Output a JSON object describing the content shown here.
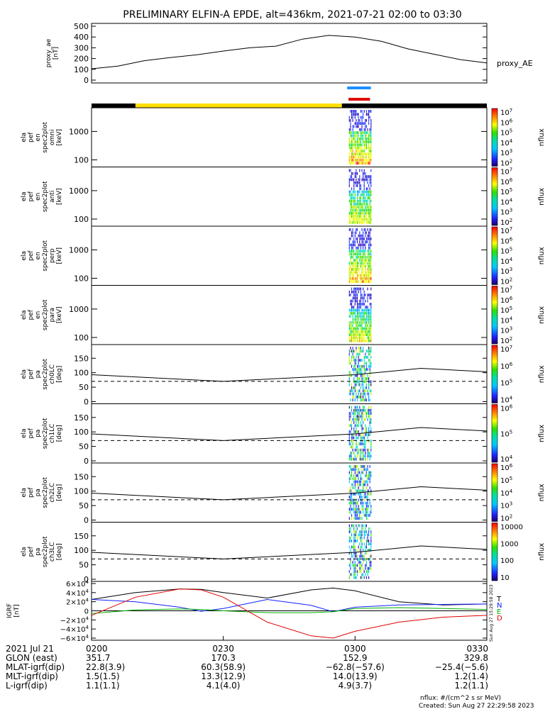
{
  "title": "PRELIMINARY ELFIN-A EPDE, alt=436km, 2021-07-21 02:00 to 03:30",
  "colors": {
    "sector_bar_black": "#000000",
    "sector_bar_yellow": "#ffe000",
    "marker_blue": "#1e90ff",
    "marker_red": "#e00000",
    "grf_n": "#1020ff",
    "grf_e": "#00b000",
    "grf_d": "#e00000",
    "grf_t": "#000000"
  },
  "chart_data": [
    {
      "id": "proxy_ae",
      "type": "line",
      "ylabel": "proxy_ae\n[nT]",
      "legend": "proxy_AE",
      "ylim": [
        0,
        500
      ],
      "yticks": [
        "500",
        "400",
        "300",
        "200",
        "100",
        "0"
      ],
      "x_minutes": [
        0,
        6,
        12,
        18,
        24,
        30,
        36,
        42,
        48,
        54,
        60,
        66,
        72,
        78,
        84,
        90
      ],
      "values": [
        105,
        130,
        180,
        210,
        235,
        270,
        300,
        315,
        380,
        415,
        400,
        360,
        290,
        240,
        190,
        160
      ]
    },
    {
      "id": "sector_bar",
      "type": "bar",
      "segments": [
        {
          "from_min": 0,
          "to_min": 10,
          "color": "black"
        },
        {
          "from_min": 10,
          "to_min": 57,
          "color": "yellow"
        },
        {
          "from_min": 57,
          "to_min": 90,
          "color": "black"
        }
      ],
      "markers": [
        {
          "color": "blue",
          "from_min": 58.2,
          "to_min": 63.6
        },
        {
          "color": "red",
          "from_min": 58.5,
          "to_min": 63.4
        }
      ]
    },
    {
      "id": "en_omni",
      "type": "heatmap",
      "ylabel": "ela\npef\nen\nspec2plot\nomni\n[keV]",
      "yticks": [
        "1000",
        "100"
      ],
      "colorbar": {
        "label": "nflux",
        "ticks": [
          "10^7",
          "10^6",
          "10^5",
          "10^4",
          "10^3",
          "10^2"
        ]
      },
      "active_minutes": [
        58.6,
        63.8
      ]
    },
    {
      "id": "en_anti",
      "type": "heatmap",
      "ylabel": "ela\npef\nen\nspec2plot\nanti\n[keV]",
      "yticks": [
        "1000",
        "100"
      ],
      "colorbar": {
        "label": "nflux",
        "ticks": [
          "10^7",
          "10^6",
          "10^5",
          "10^4",
          "10^3",
          "10^2"
        ]
      },
      "active_minutes": [
        58.6,
        63.8
      ]
    },
    {
      "id": "en_perp",
      "type": "heatmap",
      "ylabel": "ela\npef\nen\nspec2plot\nperp\n[keV]",
      "yticks": [
        "1000",
        "100"
      ],
      "colorbar": {
        "label": "nflux",
        "ticks": [
          "10^7",
          "10^6",
          "10^5",
          "10^4",
          "10^3",
          "10^2"
        ]
      },
      "active_minutes": [
        58.6,
        63.8
      ]
    },
    {
      "id": "en_para",
      "type": "heatmap",
      "ylabel": "ela\npef\nen\nspec2plot\npara\n[keV]",
      "yticks": [
        "1000",
        "100"
      ],
      "colorbar": {
        "label": "nflux",
        "ticks": [
          "10^7",
          "10^6",
          "10^5",
          "10^4",
          "10^3",
          "10^2"
        ]
      },
      "active_minutes": [
        58.6,
        63.8
      ]
    },
    {
      "id": "pa_ch0",
      "type": "heatmap",
      "ylabel": "ela\npef\npa\nspec2plot\nch0LC\n[deg]",
      "yticks": [
        "150",
        "100",
        "50",
        "0"
      ],
      "ylim": [
        0,
        180
      ],
      "colorbar": {
        "label": "nflux",
        "ticks": [
          "10^7",
          "10^6",
          "10^5",
          "10^4"
        ]
      },
      "active_minutes": [
        58.6,
        63.8
      ],
      "lc_solid": [
        93,
        70,
        93,
        115,
        103
      ],
      "lc_dashed": [
        70,
        70,
        70,
        70,
        70
      ]
    },
    {
      "id": "pa_ch1",
      "type": "heatmap",
      "ylabel": "ela\npef\npa\nspec2plot\nch1LC\n[deg]",
      "yticks": [
        "150",
        "100",
        "50",
        "0"
      ],
      "ylim": [
        0,
        180
      ],
      "colorbar": {
        "label": "nflux",
        "ticks": [
          "10^6",
          "10^5",
          "10^4"
        ]
      },
      "active_minutes": [
        58.6,
        63.8
      ],
      "lc_solid": [
        93,
        70,
        93,
        115,
        103
      ],
      "lc_dashed": [
        70,
        70,
        70,
        70,
        70
      ]
    },
    {
      "id": "pa_ch2",
      "type": "heatmap",
      "ylabel": "ela\npef\npa\nspec2plot\nch2LC\n[deg]",
      "yticks": [
        "150",
        "100",
        "50",
        "0"
      ],
      "ylim": [
        0,
        180
      ],
      "colorbar": {
        "label": "nflux",
        "ticks": [
          "10^6",
          "10^5",
          "10^4",
          "10^3",
          "10^2"
        ]
      },
      "active_minutes": [
        58.6,
        63.8
      ],
      "lc_solid": [
        93,
        70,
        93,
        115,
        103
      ],
      "lc_dashed": [
        70,
        70,
        70,
        70,
        70
      ]
    },
    {
      "id": "pa_ch3",
      "type": "heatmap",
      "ylabel": "ela\npef\npa\nspec2plot\nch3LC\n[deg]",
      "yticks": [
        "150",
        "100",
        "50",
        "0"
      ],
      "ylim": [
        0,
        180
      ],
      "colorbar": {
        "label": "nflux",
        "ticks": [
          "10000",
          "1000",
          "100",
          "10"
        ]
      },
      "active_minutes": [
        58.6,
        63.8
      ],
      "lc_solid": [
        93,
        70,
        93,
        115,
        103
      ],
      "lc_dashed": [
        70,
        70,
        70,
        70,
        70
      ]
    },
    {
      "id": "igrf",
      "type": "line",
      "ylabel": "IGRF\n[nT]",
      "yticks": [
        "6×10^4",
        "4×10^4",
        "2×10^4",
        "0",
        "−2×10^4",
        "−4×10^4",
        "−6×10^4"
      ],
      "ylim": [
        -60000,
        60000
      ],
      "legend": [
        "T",
        "N",
        "E",
        "D"
      ],
      "x_minutes": [
        0,
        10,
        20,
        25,
        30,
        40,
        50,
        55,
        60,
        70,
        80,
        90
      ],
      "series": [
        {
          "name": "T",
          "values": [
            25000,
            40000,
            48000,
            47000,
            40000,
            28000,
            46000,
            50000,
            44000,
            20000,
            13000,
            15000
          ]
        },
        {
          "name": "N",
          "values": [
            25000,
            20000,
            8000,
            -1000,
            5000,
            25000,
            12000,
            -2000,
            8000,
            13000,
            14000,
            15000
          ]
        },
        {
          "name": "E",
          "values": [
            -6000,
            2000,
            4000,
            3000,
            0,
            -4000,
            -4000,
            -2000,
            5000,
            7000,
            5000,
            3000
          ]
        },
        {
          "name": "D",
          "values": [
            -10000,
            30000,
            48000,
            46000,
            30000,
            -25000,
            -55000,
            -60000,
            -45000,
            -25000,
            -14000,
            -10000
          ]
        }
      ]
    }
  ],
  "xaxis": {
    "ticks": [
      "0200",
      "0230",
      "0300",
      "0330"
    ],
    "tick_minutes": [
      0,
      30,
      60,
      90
    ],
    "rows": [
      {
        "label": "2021 Jul 21",
        "values": [
          "0200",
          "0230",
          "0300",
          "0330"
        ]
      },
      {
        "label": "GLON (east)",
        "values": [
          "351.7",
          "170.3",
          "152.9",
          "329.8"
        ]
      },
      {
        "label": "MLAT-igrf(dip)",
        "values": [
          "22.8(3.9)",
          "60.3(58.9)",
          "−62.8(−57.6)",
          "−25.4(−5.6)"
        ]
      },
      {
        "label": "MLT-igrf(dip)",
        "values": [
          "1.5(1.5)",
          "13.3(12.9)",
          "14.0(13.9)",
          "1.2(1.4)"
        ]
      },
      {
        "label": "L-igrf(dip)",
        "values": [
          "1.1(1.1)",
          "4.1(4.0)",
          "4.9(3.7)",
          "1.2(1.1)"
        ]
      }
    ]
  },
  "footer": {
    "units": "nflux: #/(cm^2 s sr MeV)",
    "created": "Created: Sun Aug 27 22:29:58 2023",
    "side_stamp": "Sun Aug 27 15:29:58 2023"
  }
}
